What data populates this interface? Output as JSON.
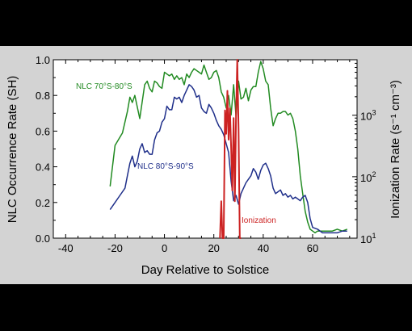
{
  "chart_data": {
    "type": "line",
    "xlabel": "Day Relative to Solstice",
    "ylabel": "NLC Occurrence Rate (SH)",
    "y2label": "Ionization Rate (s⁻¹ cm⁻³)",
    "xlim": [
      -45,
      78
    ],
    "ylim": [
      0,
      1.0
    ],
    "y2lim": [
      10,
      8000
    ],
    "y2scale": "log",
    "xticks": [
      "-40",
      "-20",
      "0",
      "20",
      "40",
      "60"
    ],
    "xtick_values": [
      -40,
      -20,
      0,
      20,
      40,
      60
    ],
    "yticks": [
      "0.0",
      "0.2",
      "0.4",
      "0.6",
      "0.8",
      "1.0"
    ],
    "ytick_values": [
      0,
      0.2,
      0.4,
      0.6,
      0.8,
      1.0
    ],
    "y2ticks": [
      {
        "base": "10",
        "exp": "1",
        "value": 10
      },
      {
        "base": "10",
        "exp": "2",
        "value": 100
      },
      {
        "base": "10",
        "exp": "3",
        "value": 1000
      }
    ],
    "grid": false,
    "series": [
      {
        "name": "NLC 70°S-80°S",
        "color": "#228b22",
        "axis": "left",
        "x": [
          -22,
          -20,
          -17,
          -15,
          -14,
          -13,
          -12,
          -10,
          -8,
          -7,
          -6,
          -5,
          -4,
          -3,
          -2,
          -1,
          0,
          1,
          2,
          3,
          4,
          5,
          6,
          7,
          8,
          9,
          10,
          11,
          12,
          13,
          14,
          15,
          16,
          17,
          18,
          19,
          20,
          21,
          22,
          23,
          24,
          25,
          26,
          27,
          28,
          29,
          30,
          31,
          32,
          33,
          34,
          35,
          36,
          37,
          38,
          39,
          40,
          41,
          42,
          43,
          44,
          45,
          46,
          47,
          48,
          49,
          50,
          51,
          52,
          53,
          54,
          55,
          56,
          57,
          58,
          59,
          60,
          61,
          62,
          64,
          66,
          68,
          70,
          72,
          74
        ],
        "values": [
          0.29,
          0.52,
          0.59,
          0.71,
          0.79,
          0.76,
          0.8,
          0.67,
          0.86,
          0.88,
          0.84,
          0.82,
          0.88,
          0.87,
          0.85,
          0.84,
          0.93,
          0.92,
          0.91,
          0.92,
          0.89,
          0.91,
          0.89,
          0.9,
          0.86,
          0.92,
          0.9,
          0.93,
          0.95,
          0.94,
          0.93,
          0.92,
          0.97,
          0.93,
          0.89,
          0.9,
          0.93,
          0.94,
          0.9,
          0.82,
          0.79,
          0.73,
          0.8,
          0.69,
          0.86,
          0.68,
          0.88,
          0.78,
          0.79,
          0.84,
          0.77,
          0.83,
          0.85,
          0.85,
          0.93,
          0.99,
          0.95,
          0.88,
          0.86,
          0.73,
          0.63,
          0.67,
          0.7,
          0.7,
          0.71,
          0.71,
          0.69,
          0.7,
          0.67,
          0.6,
          0.5,
          0.35,
          0.25,
          0.15,
          0.09,
          0.05,
          0.04,
          0.03,
          0.04,
          0.04,
          0.04,
          0.04,
          0.05,
          0.04,
          0.05
        ]
      },
      {
        "name": "NLC 80°S-90°S",
        "color": "#1f2f8a",
        "axis": "left",
        "x": [
          -22,
          -20,
          -18,
          -16,
          -15,
          -14,
          -13,
          -12,
          -11,
          -10,
          -9,
          -8,
          -7,
          -6,
          -5,
          -4,
          -3,
          -2,
          -1,
          0,
          1,
          2,
          3,
          4,
          5,
          6,
          7,
          8,
          9,
          10,
          11,
          12,
          13,
          14,
          15,
          16,
          17,
          18,
          19,
          20,
          21,
          22,
          23,
          24,
          25,
          26,
          27,
          28,
          29,
          30,
          31,
          32,
          33,
          34,
          35,
          36,
          37,
          38,
          39,
          40,
          41,
          42,
          43,
          44,
          45,
          46,
          47,
          48,
          49,
          50,
          51,
          52,
          53,
          54,
          55,
          56,
          57,
          58,
          59,
          60,
          62,
          64,
          66,
          68,
          70,
          72,
          74
        ],
        "values": [
          0.16,
          0.2,
          0.24,
          0.28,
          0.35,
          0.42,
          0.46,
          0.4,
          0.43,
          0.5,
          0.53,
          0.48,
          0.49,
          0.47,
          0.47,
          0.55,
          0.59,
          0.6,
          0.65,
          0.67,
          0.74,
          0.72,
          0.72,
          0.79,
          0.78,
          0.79,
          0.76,
          0.8,
          0.83,
          0.86,
          0.85,
          0.83,
          0.79,
          0.8,
          0.73,
          0.71,
          0.7,
          0.75,
          0.73,
          0.7,
          0.66,
          0.63,
          0.61,
          0.58,
          0.53,
          0.48,
          0.32,
          0.21,
          0.24,
          0.19,
          0.25,
          0.28,
          0.31,
          0.33,
          0.35,
          0.39,
          0.37,
          0.33,
          0.38,
          0.41,
          0.42,
          0.39,
          0.35,
          0.28,
          0.25,
          0.26,
          0.27,
          0.24,
          0.25,
          0.23,
          0.24,
          0.22,
          0.23,
          0.22,
          0.21,
          0.23,
          0.24,
          0.2,
          0.11,
          0.06,
          0.05,
          0.03,
          0.03,
          0.03,
          0.03,
          0.04,
          0.04
        ]
      },
      {
        "name": "Ionization",
        "color": "#cc2222",
        "axis": "right",
        "x": [
          22.5,
          23,
          23.5,
          24,
          24.5,
          25,
          25.5,
          26,
          26.5,
          27,
          27.5,
          28,
          28.5,
          29,
          29.5,
          30,
          30.5,
          31
        ],
        "values": [
          10,
          40,
          10,
          10,
          1200,
          500,
          2500,
          400,
          1300,
          300,
          60,
          900,
          40,
          1000,
          8000,
          600,
          10,
          10
        ]
      }
    ],
    "annotations": [
      {
        "text": "NLC 70°S-80°S",
        "color": "#228b22"
      },
      {
        "text": "NLC 80°S-90°S",
        "color": "#1f2f8a"
      },
      {
        "text": "Ionization",
        "color": "#cc2222"
      }
    ]
  }
}
